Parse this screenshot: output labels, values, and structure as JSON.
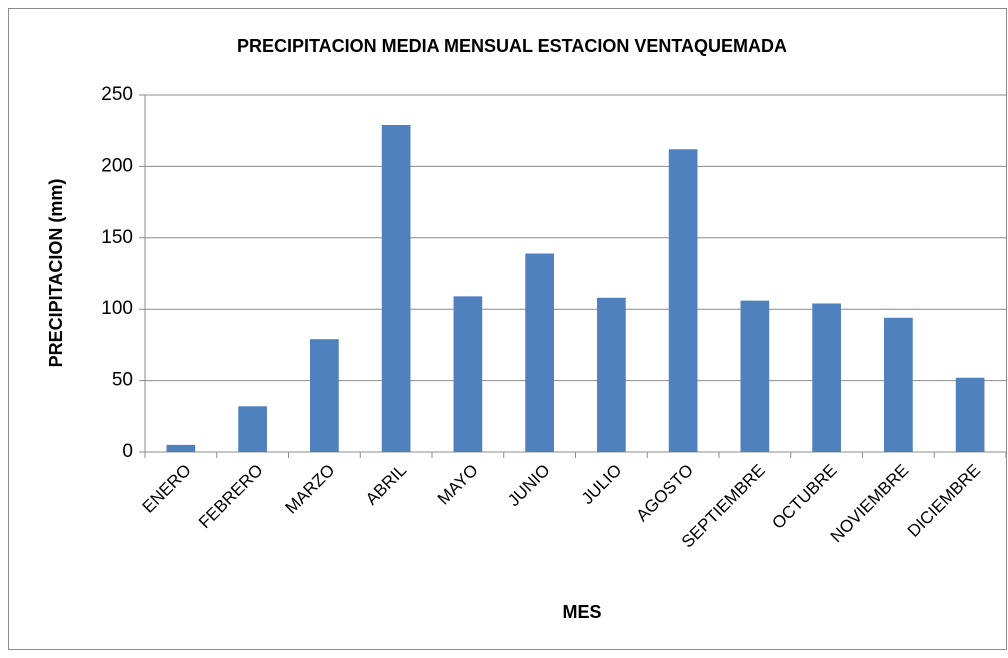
{
  "chart_data": {
    "type": "bar",
    "title": "PRECIPITACION MEDIA MENSUAL ESTACION VENTAQUEMADA",
    "x_label": "MES",
    "y_label": "PRECIPITACION (mm)",
    "categories": [
      "ENERO",
      "FEBRERO",
      "MARZO",
      "ABRIL",
      "MAYO",
      "JUNIO",
      "JULIO",
      "AGOSTO",
      "SEPTIEMBRE",
      "OCTUBRE",
      "NOVIEMBRE",
      "DICIEMBRE"
    ],
    "values": [
      5,
      32,
      79,
      229,
      109,
      139,
      108,
      212,
      106,
      104,
      94,
      52
    ],
    "color": "#4f81bd",
    "ylim": [
      0,
      250
    ],
    "yticks": [
      0,
      50,
      100,
      150,
      200,
      250
    ],
    "grid": true
  }
}
